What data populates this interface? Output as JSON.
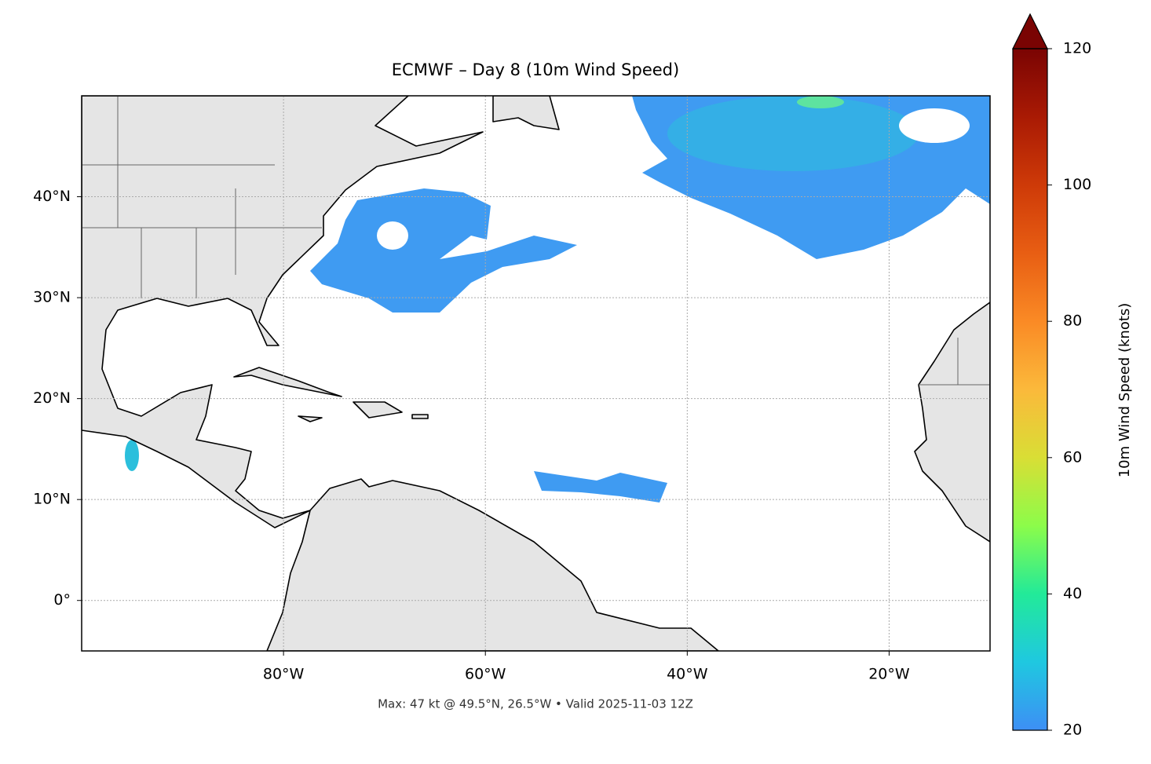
{
  "map": {
    "title": "ECMWF – Day 8 (10m Wind Speed)",
    "footer": "Max: 47 kt @ 49.5°N, 26.5°W • Valid 2025-11-03 12Z",
    "lonlim": [
      -100,
      -10
    ],
    "latlim": [
      -5,
      50
    ],
    "xticks": [
      {
        "value": -80,
        "label": "80°W"
      },
      {
        "value": -60,
        "label": "60°W"
      },
      {
        "value": -40,
        "label": "40°W"
      },
      {
        "value": -20,
        "label": "20°W"
      }
    ],
    "yticks": [
      {
        "value": 0,
        "label": "0°"
      },
      {
        "value": 10,
        "label": "10°N"
      },
      {
        "value": 20,
        "label": "20°N"
      },
      {
        "value": 30,
        "label": "30°N"
      },
      {
        "value": 40,
        "label": "40°N"
      }
    ],
    "grid": true
  },
  "colorbar": {
    "label": "10m Wind Speed (knots)",
    "lim": [
      20,
      120
    ],
    "ticks": [
      20,
      40,
      60,
      80,
      100,
      120
    ],
    "extend": "max",
    "colormap": [
      "#3d8ff5",
      "#1fc8e0",
      "#22ea99",
      "#8cfc4a",
      "#d9de35",
      "#fbb93b",
      "#fa8a25",
      "#e85e13",
      "#ce3a08",
      "#a91a04",
      "#7a0403"
    ]
  }
}
